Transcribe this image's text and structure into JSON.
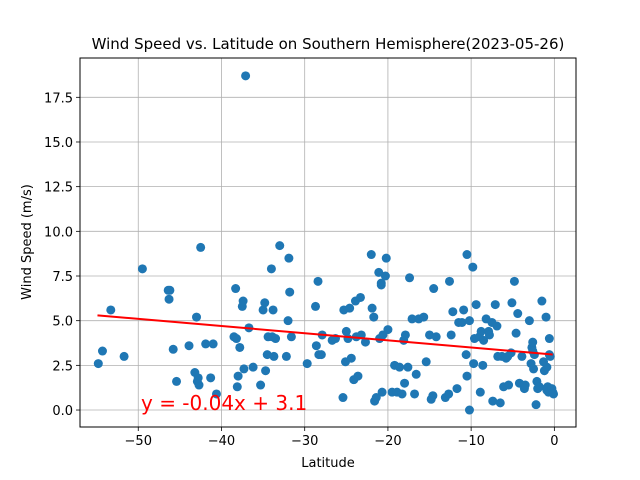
{
  "chart_data": {
    "type": "scatter",
    "title": "Wind Speed vs. Latitude on Southern Hemisphere(2023-05-26)",
    "xlabel": "Latitude",
    "ylabel": "Wind Speed (m/s)",
    "xlim": [
      -57,
      2.6
    ],
    "ylim": [
      -0.95,
      19.7
    ],
    "xticks": [
      -50,
      -40,
      -30,
      -20,
      -10,
      0
    ],
    "xtick_labels": [
      "−50",
      "−40",
      "−30",
      "−20",
      "−10",
      "0"
    ],
    "yticks": [
      0.0,
      2.5,
      5.0,
      7.5,
      10.0,
      12.5,
      15.0,
      17.5
    ],
    "ytick_labels": [
      "0.0",
      "2.5",
      "5.0",
      "7.5",
      "10.0",
      "12.5",
      "15.0",
      "17.5"
    ],
    "grid": true,
    "colors": {
      "points": "#1f77b4",
      "regression": "#ff0000",
      "annotation": "#ff0000"
    },
    "regression": {
      "slope": -0.04,
      "intercept": 3.1,
      "x_range": [
        -54.9,
        -0.2
      ],
      "equation": "y = -0.04x + 3.1"
    },
    "series": [
      {
        "points": [
          [
            -54.8,
            2.6
          ],
          [
            -54.3,
            3.3
          ],
          [
            -53.3,
            5.6
          ],
          [
            -51.7,
            3.0
          ],
          [
            -49.5,
            7.9
          ],
          [
            -46.4,
            6.7
          ],
          [
            -46.2,
            6.7
          ],
          [
            -46.3,
            6.2
          ],
          [
            -45.8,
            3.4
          ],
          [
            -45.4,
            1.6
          ],
          [
            -43.9,
            3.6
          ],
          [
            -43.2,
            2.1
          ],
          [
            -43.0,
            5.2
          ],
          [
            -42.9,
            1.6
          ],
          [
            -42.7,
            1.4
          ],
          [
            -42.8,
            1.8
          ],
          [
            -42.5,
            9.1
          ],
          [
            -41.9,
            3.7
          ],
          [
            -41.3,
            1.8
          ],
          [
            -41.0,
            3.7
          ],
          [
            -40.6,
            0.9
          ],
          [
            -38.5,
            4.1
          ],
          [
            -38.3,
            6.8
          ],
          [
            -38.2,
            4.0
          ],
          [
            -38.1,
            1.3
          ],
          [
            -38.0,
            1.9
          ],
          [
            -37.8,
            3.5
          ],
          [
            -37.5,
            5.8
          ],
          [
            -37.4,
            6.1
          ],
          [
            -37.3,
            2.3
          ],
          [
            -37.1,
            18.7
          ],
          [
            -36.7,
            4.6
          ],
          [
            -36.2,
            2.4
          ],
          [
            -35.3,
            1.4
          ],
          [
            -35.0,
            5.6
          ],
          [
            -34.8,
            6.0
          ],
          [
            -34.7,
            2.2
          ],
          [
            -34.5,
            3.1
          ],
          [
            -34.4,
            4.1
          ],
          [
            -34.0,
            7.9
          ],
          [
            -33.9,
            4.1
          ],
          [
            -33.8,
            5.6
          ],
          [
            -33.7,
            3.0
          ],
          [
            -33.5,
            4.0
          ],
          [
            -33.0,
            9.2
          ],
          [
            -32.2,
            3.0
          ],
          [
            -32.0,
            5.0
          ],
          [
            -31.9,
            8.5
          ],
          [
            -31.8,
            6.6
          ],
          [
            -31.6,
            4.1
          ],
          [
            -29.7,
            2.6
          ],
          [
            -28.7,
            5.8
          ],
          [
            -28.6,
            3.6
          ],
          [
            -28.4,
            7.2
          ],
          [
            -28.3,
            3.1
          ],
          [
            -28.0,
            3.1
          ],
          [
            -27.9,
            4.2
          ],
          [
            -26.7,
            3.9
          ],
          [
            -26.3,
            4.0
          ],
          [
            -25.4,
            0.7
          ],
          [
            -25.3,
            5.6
          ],
          [
            -25.1,
            2.7
          ],
          [
            -25.0,
            4.4
          ],
          [
            -24.8,
            4.0
          ],
          [
            -24.6,
            5.7
          ],
          [
            -24.4,
            2.9
          ],
          [
            -24.1,
            1.7
          ],
          [
            -23.9,
            6.1
          ],
          [
            -23.8,
            4.1
          ],
          [
            -23.6,
            1.9
          ],
          [
            -23.3,
            6.3
          ],
          [
            -23.2,
            4.2
          ],
          [
            -22.7,
            3.8
          ],
          [
            -22.0,
            8.7
          ],
          [
            -21.9,
            5.7
          ],
          [
            -21.7,
            5.2
          ],
          [
            -21.6,
            0.5
          ],
          [
            -21.4,
            0.7
          ],
          [
            -21.1,
            7.7
          ],
          [
            -21.0,
            4.0
          ],
          [
            -20.8,
            7.1
          ],
          [
            -20.8,
            7.0
          ],
          [
            -20.7,
            1.0
          ],
          [
            -20.6,
            4.2
          ],
          [
            -20.3,
            7.5
          ],
          [
            -20.2,
            8.5
          ],
          [
            -20.0,
            4.5
          ],
          [
            -19.5,
            1.0
          ],
          [
            -19.2,
            2.5
          ],
          [
            -18.9,
            1.0
          ],
          [
            -18.6,
            2.4
          ],
          [
            -18.3,
            0.9
          ],
          [
            -18.1,
            3.9
          ],
          [
            -18.0,
            1.5
          ],
          [
            -17.9,
            4.2
          ],
          [
            -17.6,
            2.4
          ],
          [
            -17.4,
            7.4
          ],
          [
            -17.1,
            5.1
          ],
          [
            -16.8,
            0.9
          ],
          [
            -16.6,
            2.0
          ],
          [
            -16.3,
            5.1
          ],
          [
            -15.7,
            5.2
          ],
          [
            -15.4,
            2.7
          ],
          [
            -15.0,
            4.2
          ],
          [
            -14.8,
            0.6
          ],
          [
            -14.6,
            0.8
          ],
          [
            -14.5,
            6.8
          ],
          [
            -14.2,
            4.1
          ],
          [
            -13.1,
            0.7
          ],
          [
            -12.7,
            0.9
          ],
          [
            -12.6,
            7.2
          ],
          [
            -12.4,
            4.2
          ],
          [
            -12.2,
            5.5
          ],
          [
            -11.7,
            1.2
          ],
          [
            -11.5,
            4.9
          ],
          [
            -11.1,
            4.9
          ],
          [
            -10.9,
            5.6
          ],
          [
            -10.6,
            3.1
          ],
          [
            -10.5,
            8.7
          ],
          [
            -10.5,
            1.9
          ],
          [
            -10.2,
            5.0
          ],
          [
            -10.2,
            0.0
          ],
          [
            -9.8,
            8.0
          ],
          [
            -9.7,
            2.6
          ],
          [
            -9.6,
            4.0
          ],
          [
            -9.4,
            5.9
          ],
          [
            -9.0,
            4.1
          ],
          [
            -8.9,
            1.0
          ],
          [
            -8.8,
            4.4
          ],
          [
            -8.6,
            2.5
          ],
          [
            -8.5,
            3.9
          ],
          [
            -8.2,
            5.1
          ],
          [
            -7.9,
            4.4
          ],
          [
            -7.8,
            4.2
          ],
          [
            -7.5,
            4.9
          ],
          [
            -7.4,
            0.5
          ],
          [
            -7.1,
            5.9
          ],
          [
            -6.9,
            4.7
          ],
          [
            -6.8,
            3.0
          ],
          [
            -6.5,
            0.4
          ],
          [
            -6.3,
            3.0
          ],
          [
            -6.1,
            1.3
          ],
          [
            -5.8,
            2.9
          ],
          [
            -5.6,
            3.0
          ],
          [
            -5.5,
            1.4
          ],
          [
            -5.2,
            3.2
          ],
          [
            -5.1,
            6.0
          ],
          [
            -4.8,
            7.2
          ],
          [
            -4.6,
            4.3
          ],
          [
            -4.4,
            5.4
          ],
          [
            -4.2,
            1.5
          ],
          [
            -3.9,
            3.0
          ],
          [
            -3.6,
            1.2
          ],
          [
            -3.5,
            1.4
          ],
          [
            -3.0,
            5.0
          ],
          [
            -2.8,
            2.6
          ],
          [
            -2.7,
            3.5
          ],
          [
            -2.6,
            3.8
          ],
          [
            -2.6,
            3.3
          ],
          [
            -2.5,
            2.3
          ],
          [
            -2.4,
            3.1
          ],
          [
            -2.2,
            0.3
          ],
          [
            -2.1,
            1.6
          ],
          [
            -2.0,
            1.2
          ],
          [
            -1.8,
            1.3
          ],
          [
            -1.5,
            6.1
          ],
          [
            -1.3,
            2.7
          ],
          [
            -1.2,
            2.2
          ],
          [
            -1.0,
            5.2
          ],
          [
            -0.9,
            2.4
          ],
          [
            -0.9,
            1.1
          ],
          [
            -0.8,
            1.3
          ],
          [
            -0.7,
            1.0
          ],
          [
            -0.6,
            4.0
          ],
          [
            -0.6,
            3.1
          ],
          [
            -0.5,
            3.0
          ],
          [
            -0.3,
            1.2
          ],
          [
            -0.2,
            1.0
          ],
          [
            -0.1,
            0.9
          ]
        ]
      }
    ]
  }
}
